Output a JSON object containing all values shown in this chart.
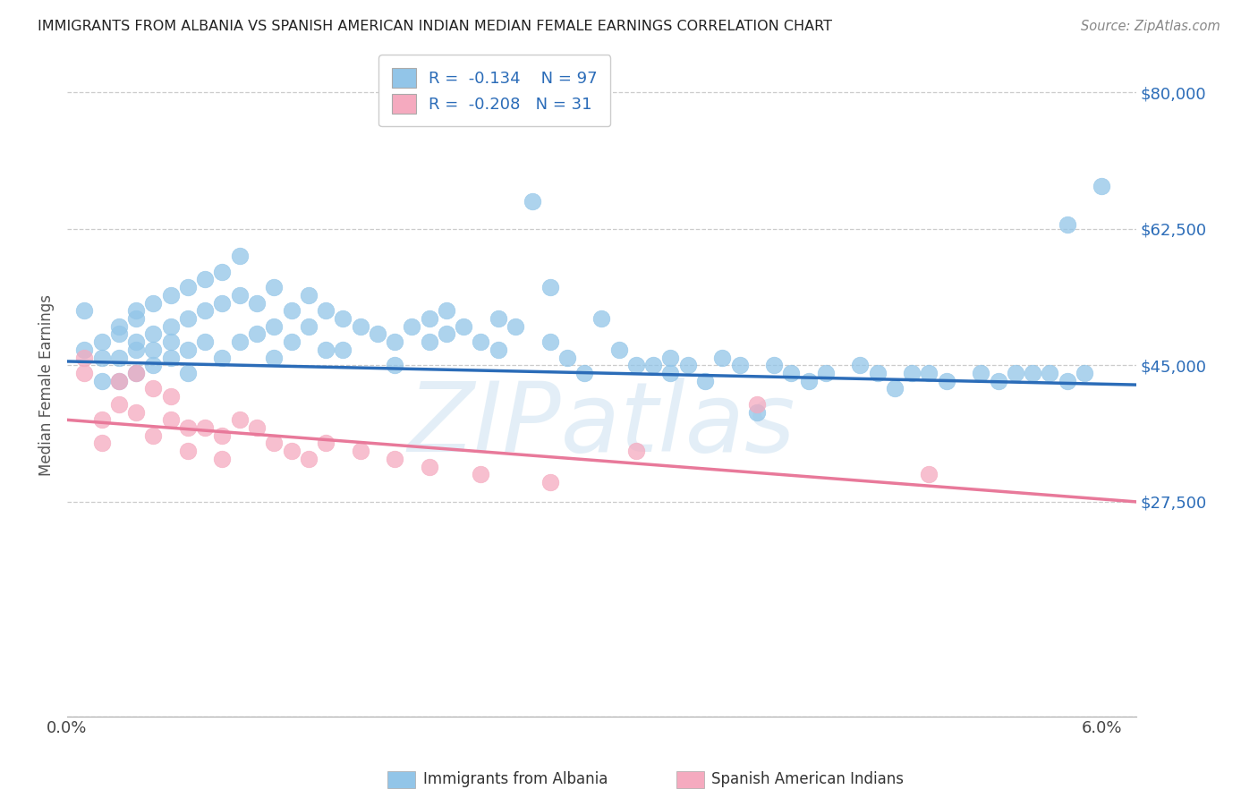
{
  "title": "IMMIGRANTS FROM ALBANIA VS SPANISH AMERICAN INDIAN MEDIAN FEMALE EARNINGS CORRELATION CHART",
  "source": "Source: ZipAtlas.com",
  "ylabel": "Median Female Earnings",
  "watermark": "ZIPatlas",
  "xlim": [
    0.0,
    0.062
  ],
  "ylim": [
    0,
    85000
  ],
  "yticks": [
    0,
    27500,
    45000,
    62500,
    80000
  ],
  "ytick_labels": [
    "",
    "$27,500",
    "$45,000",
    "$62,500",
    "$80,000"
  ],
  "blue_R": -0.134,
  "blue_N": 97,
  "pink_R": -0.208,
  "pink_N": 31,
  "blue_color": "#92C5E8",
  "pink_color": "#F5AABF",
  "blue_line_color": "#2B6CB8",
  "pink_line_color": "#E8799A",
  "legend_label_blue": "Immigrants from Albania",
  "legend_label_pink": "Spanish American Indians",
  "blue_scatter_x": [
    0.001,
    0.001,
    0.002,
    0.002,
    0.002,
    0.003,
    0.003,
    0.003,
    0.003,
    0.004,
    0.004,
    0.004,
    0.004,
    0.004,
    0.005,
    0.005,
    0.005,
    0.005,
    0.006,
    0.006,
    0.006,
    0.006,
    0.007,
    0.007,
    0.007,
    0.007,
    0.008,
    0.008,
    0.008,
    0.009,
    0.009,
    0.009,
    0.01,
    0.01,
    0.01,
    0.011,
    0.011,
    0.012,
    0.012,
    0.012,
    0.013,
    0.013,
    0.014,
    0.014,
    0.015,
    0.015,
    0.016,
    0.016,
    0.017,
    0.018,
    0.019,
    0.019,
    0.02,
    0.021,
    0.021,
    0.022,
    0.022,
    0.023,
    0.024,
    0.025,
    0.025,
    0.026,
    0.027,
    0.028,
    0.028,
    0.029,
    0.03,
    0.031,
    0.032,
    0.033,
    0.034,
    0.035,
    0.035,
    0.036,
    0.037,
    0.038,
    0.039,
    0.04,
    0.041,
    0.042,
    0.043,
    0.044,
    0.046,
    0.047,
    0.048,
    0.049,
    0.05,
    0.051,
    0.053,
    0.054,
    0.055,
    0.056,
    0.058,
    0.059,
    0.06,
    0.057,
    0.058
  ],
  "blue_scatter_y": [
    47000,
    52000,
    48000,
    43000,
    46000,
    49000,
    46000,
    43000,
    50000,
    51000,
    47000,
    44000,
    48000,
    52000,
    53000,
    49000,
    45000,
    47000,
    54000,
    50000,
    46000,
    48000,
    55000,
    51000,
    47000,
    44000,
    56000,
    52000,
    48000,
    57000,
    53000,
    46000,
    59000,
    54000,
    48000,
    53000,
    49000,
    55000,
    50000,
    46000,
    52000,
    48000,
    54000,
    50000,
    52000,
    47000,
    51000,
    47000,
    50000,
    49000,
    48000,
    45000,
    50000,
    51000,
    48000,
    52000,
    49000,
    50000,
    48000,
    51000,
    47000,
    50000,
    66000,
    55000,
    48000,
    46000,
    44000,
    51000,
    47000,
    45000,
    45000,
    46000,
    44000,
    45000,
    43000,
    46000,
    45000,
    39000,
    45000,
    44000,
    43000,
    44000,
    45000,
    44000,
    42000,
    44000,
    44000,
    43000,
    44000,
    43000,
    44000,
    44000,
    43000,
    44000,
    68000,
    44000,
    63000
  ],
  "pink_scatter_x": [
    0.001,
    0.001,
    0.002,
    0.002,
    0.003,
    0.003,
    0.004,
    0.004,
    0.005,
    0.005,
    0.006,
    0.006,
    0.007,
    0.007,
    0.008,
    0.009,
    0.009,
    0.01,
    0.011,
    0.012,
    0.013,
    0.014,
    0.015,
    0.017,
    0.019,
    0.021,
    0.024,
    0.028,
    0.033,
    0.04,
    0.05
  ],
  "pink_scatter_y": [
    44000,
    46000,
    35000,
    38000,
    43000,
    40000,
    44000,
    39000,
    42000,
    36000,
    41000,
    38000,
    37000,
    34000,
    37000,
    36000,
    33000,
    38000,
    37000,
    35000,
    34000,
    33000,
    35000,
    34000,
    33000,
    32000,
    31000,
    30000,
    34000,
    40000,
    31000
  ]
}
